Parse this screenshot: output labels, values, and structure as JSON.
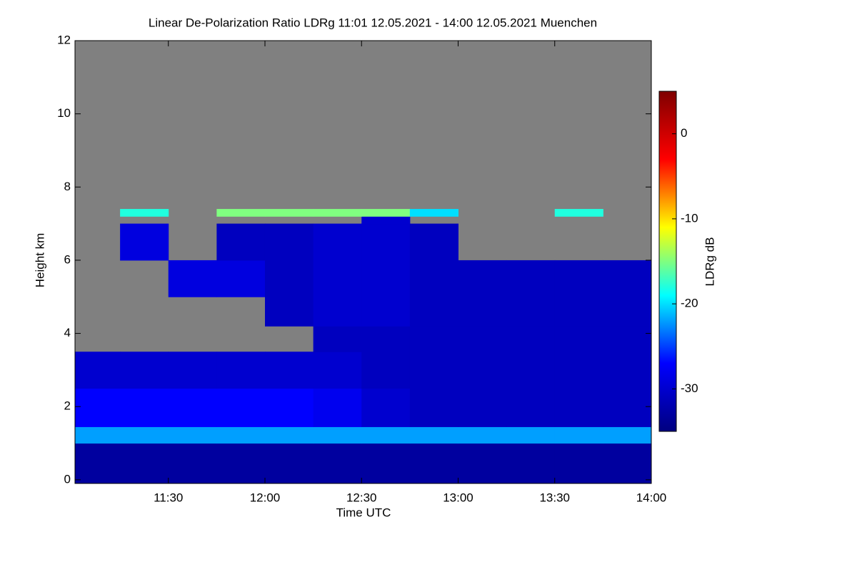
{
  "chart_data": {
    "type": "heatmap",
    "title": "Linear De-Polarization Ratio LDRg   11:01 12.05.2021 - 14:00 12.05.2021 Muenchen",
    "xlabel": "Time UTC",
    "ylabel": "Height km",
    "colorbar_label": "LDRg dB",
    "xlim": [
      661,
      840
    ],
    "xticks": [
      {
        "value": 690,
        "label": "11:30"
      },
      {
        "value": 720,
        "label": "12:00"
      },
      {
        "value": 750,
        "label": "12:30"
      },
      {
        "value": 780,
        "label": "13:00"
      },
      {
        "value": 810,
        "label": "13:30"
      },
      {
        "value": 840,
        "label": "14:00"
      }
    ],
    "ylim": [
      -0.1,
      12
    ],
    "yticks": [
      0,
      2,
      4,
      6,
      8,
      10,
      12
    ],
    "clim": [
      -35,
      5
    ],
    "cticks": [
      0,
      -10,
      -20,
      -30
    ],
    "colormap": [
      "#00007f",
      "#0000ff",
      "#00ffff",
      "#ffff00",
      "#ff0000",
      "#7f0000"
    ],
    "missing_color": "#808080",
    "xbins": [
      661,
      675,
      690,
      705,
      720,
      735,
      750,
      765,
      780,
      795,
      810,
      825,
      840
    ],
    "ybins": [
      -0.1,
      1.0,
      1.45,
      2.5,
      3.5,
      4.2,
      5.0,
      6.0,
      7.0,
      7.2,
      7.4,
      12
    ],
    "z": [
      [
        -33,
        -33,
        -33,
        -33,
        -33,
        -33,
        -33,
        -33,
        -33,
        -33,
        -33,
        -33
      ],
      [
        -22,
        -22,
        -22,
        -22,
        -22,
        -22,
        -22,
        -22,
        -22,
        -22,
        -22,
        -22
      ],
      [
        -27,
        -27,
        -27,
        -27,
        -27,
        -28,
        -30,
        -31,
        -31,
        -31,
        -31,
        -31
      ],
      [
        -30,
        -30,
        -30,
        -30,
        -30,
        -30,
        -31,
        -31,
        -31,
        -31,
        -31,
        -31
      ],
      [
        null,
        null,
        null,
        null,
        null,
        -31,
        -31,
        -31,
        -31,
        -31,
        -31,
        -31
      ],
      [
        null,
        null,
        null,
        null,
        -31,
        -30,
        -30,
        -31,
        -31,
        -31,
        -31,
        -31
      ],
      [
        null,
        null,
        -29,
        -29,
        -31,
        -30,
        -30,
        -31,
        -31,
        -31,
        -31,
        -31
      ],
      [
        null,
        -29,
        null,
        -31,
        -31,
        -30,
        -30,
        -31,
        null,
        null,
        null,
        null
      ],
      [
        null,
        null,
        null,
        null,
        null,
        null,
        -30,
        null,
        null,
        null,
        null,
        null
      ],
      [
        null,
        -18,
        null,
        -15,
        -15,
        -15,
        -15,
        -20,
        null,
        null,
        -18,
        null
      ],
      [
        null,
        null,
        null,
        null,
        null,
        null,
        null,
        null,
        null,
        null,
        null,
        null
      ]
    ]
  }
}
